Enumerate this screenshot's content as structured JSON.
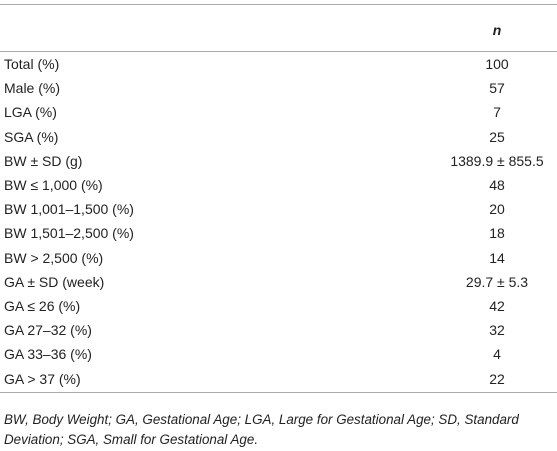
{
  "table": {
    "columns": [
      "n"
    ],
    "rows": [
      [
        "Total (%)",
        "100"
      ],
      [
        "Male (%)",
        "57"
      ],
      [
        "LGA (%)",
        "7"
      ],
      [
        "SGA (%)",
        "25"
      ],
      [
        "BW ± SD (g)",
        "1389.9 ± 855.5"
      ],
      [
        "BW ≤ 1,000 (%)",
        "48"
      ],
      [
        "BW 1,001–1,500 (%)",
        "20"
      ],
      [
        "BW 1,501–2,500 (%)",
        "18"
      ],
      [
        "BW > 2,500 (%)",
        "14"
      ],
      [
        "GA ± SD (week)",
        "29.7 ± 5.3"
      ],
      [
        "GA ≤ 26 (%)",
        "42"
      ],
      [
        "GA 27–32 (%)",
        "32"
      ],
      [
        "GA 33–36 (%)",
        "4"
      ],
      [
        "GA > 37 (%)",
        "22"
      ]
    ]
  },
  "footnote": "BW, Body Weight; GA, Gestational Age; LGA, Large for Gestational Age; SD, Standard Deviation; SGA, Small for Gestational Age."
}
